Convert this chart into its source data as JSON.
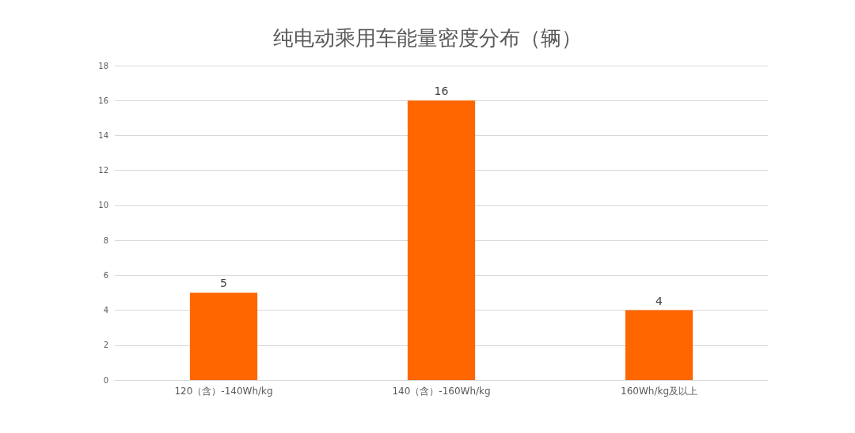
{
  "chart_data": {
    "type": "bar",
    "title": "纯电动乘用车能量密度分布（辆）",
    "categories": [
      "120（含）-140Wh/kg",
      "140（含）-160Wh/kg",
      "160Wh/kg及以上"
    ],
    "values": [
      5,
      16,
      4
    ],
    "color": "#ff6600",
    "ylim": [
      0,
      18
    ],
    "yticks": [
      0,
      2,
      4,
      6,
      8,
      10,
      12,
      14,
      16,
      18
    ],
    "grid": "y",
    "data_labels": true
  }
}
